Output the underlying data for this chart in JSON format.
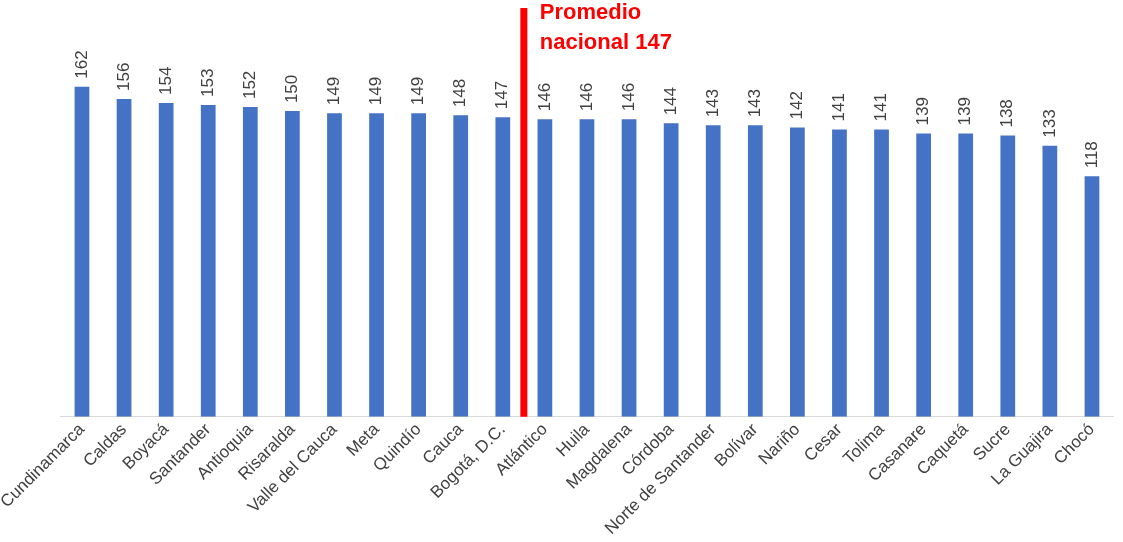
{
  "chart_data": {
    "type": "bar",
    "categories": [
      "Cundinamarca",
      "Caldas",
      "Boyacá",
      "Santander",
      "Antioquia",
      "Risaralda",
      "Valle del Cauca",
      "Meta",
      "Quindío",
      "Cauca",
      "Bogotá, D.C.",
      "Atlántico",
      "Huila",
      "Magdalena",
      "Córdoba",
      "Norte de Santander",
      "Bolívar",
      "Nariño",
      "Cesar",
      "Tolima",
      "Casanare",
      "Caquetá",
      "Sucre",
      "La Guajira",
      "Chocó"
    ],
    "values": [
      162,
      156,
      154,
      153,
      152,
      150,
      149,
      149,
      149,
      148,
      147,
      146,
      146,
      146,
      144,
      143,
      143,
      142,
      141,
      141,
      139,
      139,
      138,
      133,
      118
    ],
    "color": "#4472c4",
    "data_labels": true,
    "tick_labels": "x",
    "grid": false,
    "legend": false,
    "ref_lines": [
      {
        "axis": "x",
        "value": "Bogotá, D.C.",
        "label": "Promedio nacional 147",
        "color": "#ff0000"
      }
    ]
  }
}
